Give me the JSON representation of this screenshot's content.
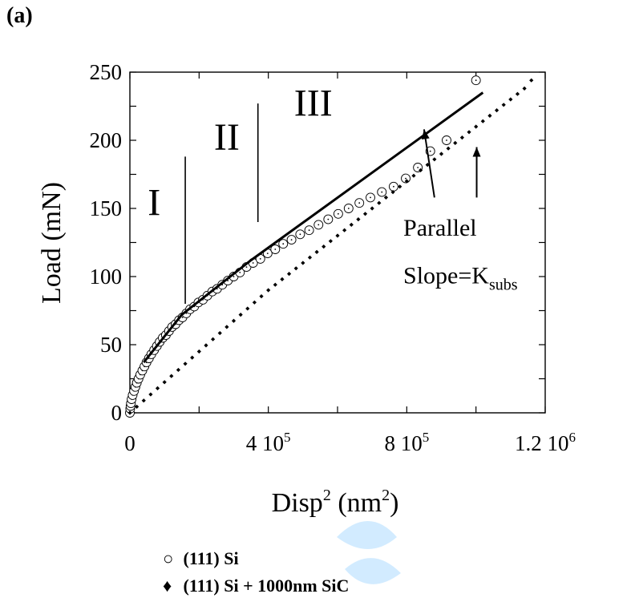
{
  "panel_label": "(a)",
  "chart_data": {
    "type": "scatter",
    "xlabel_base": "Disp",
    "xlabel_base_sup": "2",
    "xlabel_unit": "(nm",
    "xlabel_unit_sup": "2",
    "xlabel_close": ")",
    "ylabel": "Load (mN)",
    "xlim": [
      0,
      1200000
    ],
    "ylim": [
      0,
      250
    ],
    "x_ticks": [
      {
        "value": 0,
        "base": "0",
        "exp": ""
      },
      {
        "value": 400000,
        "base": "4 10",
        "exp": "5"
      },
      {
        "value": 800000,
        "base": "8 10",
        "exp": "5"
      },
      {
        "value": 1200000,
        "base": "1.2 10",
        "exp": "6"
      }
    ],
    "y_ticks": [
      {
        "value": 0,
        "label": "0"
      },
      {
        "value": 50,
        "label": "50"
      },
      {
        "value": 100,
        "label": "100"
      },
      {
        "value": 150,
        "label": "150"
      },
      {
        "value": 200,
        "label": "200"
      },
      {
        "value": 250,
        "label": "250"
      }
    ],
    "series": [
      {
        "name": "(111) Si",
        "marker": "○",
        "marker_style": "open-circle",
        "x": [
          0,
          1000,
          2000,
          3000,
          5000,
          8000,
          12000,
          16000,
          20000,
          25000,
          30000,
          36000,
          42000,
          48000,
          55000,
          62000,
          70000,
          78000,
          86000,
          95000,
          104000,
          113000,
          122000,
          132000,
          142000,
          152000,
          163000,
          174000,
          186000,
          198000,
          211000,
          224000,
          238000,
          252000,
          267000,
          283000,
          300000,
          318000,
          337000,
          356000,
          377000,
          398000,
          420000,
          443000,
          467000,
          492000,
          518000,
          545000,
          573000,
          602000,
          632000,
          663000,
          695000,
          728000,
          762000,
          797000,
          832000,
          868000,
          915000,
          1000000
        ],
        "y": [
          0,
          3,
          5,
          7,
          10,
          13,
          16,
          19,
          22,
          25,
          28,
          31,
          34,
          37,
          40,
          43,
          46,
          49,
          52,
          55,
          57,
          60,
          63,
          65,
          68,
          70,
          73,
          76,
          78,
          81,
          83,
          86,
          89,
          91,
          94,
          97,
          100,
          103,
          107,
          110,
          113,
          117,
          120,
          124,
          127,
          131,
          134,
          138,
          142,
          146,
          150,
          154,
          158,
          162,
          166,
          172,
          180,
          192,
          200,
          244
        ]
      },
      {
        "name": "(111) Si + 1000nm SiC",
        "marker": "♦",
        "marker_style": "filled-diamond",
        "x": [
          0,
          20000,
          40000,
          60000,
          80000,
          100000,
          120000,
          140000,
          160000,
          180000,
          200000,
          220000,
          240000,
          260000,
          280000,
          300000,
          320000,
          340000,
          360000,
          380000,
          400000,
          420000,
          440000,
          460000,
          480000,
          500000,
          520000,
          540000,
          560000,
          580000,
          600000,
          620000,
          640000,
          660000,
          680000,
          700000,
          720000,
          740000,
          760000,
          780000,
          800000,
          820000,
          840000,
          860000,
          880000,
          900000,
          920000,
          940000,
          960000,
          980000,
          1000000,
          1020000,
          1040000,
          1060000,
          1080000,
          1100000,
          1120000,
          1140000,
          1160000
        ],
        "y": [
          0,
          4.5,
          9,
          13.5,
          18,
          22.5,
          27,
          31.5,
          36,
          40.5,
          45,
          49.5,
          54,
          58.5,
          63,
          67.5,
          72,
          76.5,
          81,
          85.5,
          90,
          94,
          98,
          102,
          106,
          110,
          114,
          118,
          122,
          126,
          130,
          134,
          138,
          142,
          146,
          150,
          154,
          158,
          162,
          166,
          170,
          174,
          178,
          182,
          186,
          190,
          194,
          198,
          202,
          206,
          210,
          214,
          218,
          222,
          226,
          230,
          234,
          238,
          244
        ]
      }
    ],
    "fit_line": {
      "x": [
        40000,
        150000,
        350000,
        1020000
      ],
      "y": [
        37,
        72,
        112,
        235
      ]
    },
    "region_dividers": [
      {
        "x": 160000,
        "y": [
          80,
          188
        ]
      },
      {
        "x": 370000,
        "y": [
          140,
          227
        ]
      }
    ],
    "annotations": [
      {
        "text": "I",
        "x": 70000,
        "y": 145
      },
      {
        "text": "II",
        "x": 280000,
        "y": 193
      },
      {
        "text": "III",
        "x": 530000,
        "y": 218
      },
      {
        "text": "Parallel",
        "x": 790000,
        "y": 130
      },
      {
        "text": "Slope=K",
        "sub": "subs",
        "x": 790000,
        "y": 95
      }
    ],
    "arrows": [
      {
        "from": [
          880000,
          158
        ],
        "to": [
          850000,
          208
        ]
      },
      {
        "from": [
          1002000,
          158
        ],
        "to": [
          1002000,
          195
        ]
      }
    ],
    "grid": false,
    "legend_position": "bottom"
  }
}
